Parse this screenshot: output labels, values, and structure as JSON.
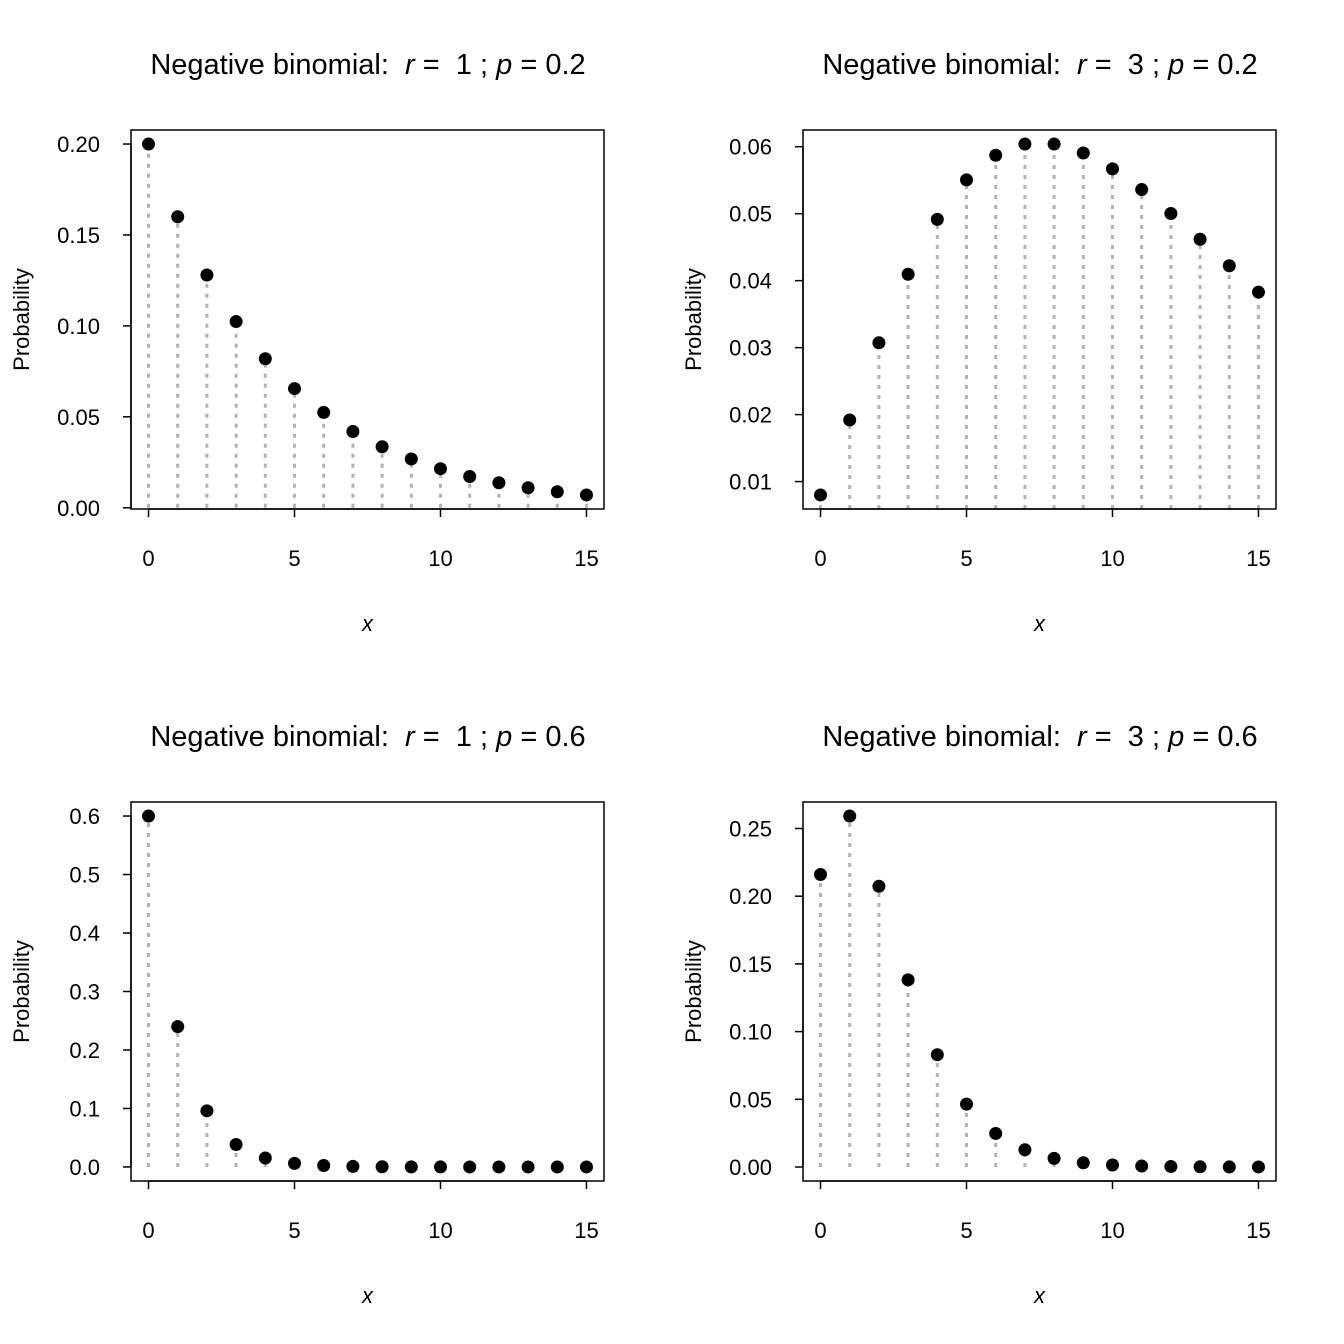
{
  "chart_data": [
    {
      "type": "scatter",
      "title": {
        "prefix": "Negative binomial:",
        "r_symbol": "r",
        "r": "1",
        "p_symbol": "p",
        "p": "0.2"
      },
      "xlabel": "x",
      "ylabel": "Probability",
      "x": [
        0,
        1,
        2,
        3,
        4,
        5,
        6,
        7,
        8,
        9,
        10,
        11,
        12,
        13,
        14,
        15
      ],
      "values": [
        0.2,
        0.16,
        0.128,
        0.1024,
        0.08192,
        0.065536,
        0.052429,
        0.041943,
        0.033554,
        0.026844,
        0.021475,
        0.01718,
        0.013744,
        0.010995,
        0.008796,
        0.007037
      ],
      "xlim": [
        0,
        15
      ],
      "ylim": [
        0.007037,
        0.2
      ],
      "xticks": [
        0,
        5,
        10,
        15
      ],
      "xtick_labels": [
        "0",
        "5",
        "10",
        "15"
      ],
      "yticks": [
        0,
        0.05,
        0.1,
        0.15,
        0.2
      ],
      "ytick_labels": [
        "0.00",
        "0.05",
        "0.10",
        "0.15",
        "0.20"
      ],
      "grid": false
    },
    {
      "type": "scatter",
      "title": {
        "prefix": "Negative binomial:",
        "r_symbol": "r",
        "r": "3",
        "p_symbol": "p",
        "p": "0.2"
      },
      "xlabel": "x",
      "ylabel": "Probability",
      "x": [
        0,
        1,
        2,
        3,
        4,
        5,
        6,
        7,
        8,
        9,
        10,
        11,
        12,
        13,
        14,
        15
      ],
      "values": [
        0.008,
        0.0192,
        0.03072,
        0.04096,
        0.049152,
        0.05505,
        0.05872,
        0.060398,
        0.060398,
        0.059056,
        0.056694,
        0.053601,
        0.050028,
        0.046178,
        0.042221,
        0.03828
      ],
      "xlim": [
        0,
        15
      ],
      "ylim": [
        0.008,
        0.060398
      ],
      "xticks": [
        0,
        5,
        10,
        15
      ],
      "xtick_labels": [
        "0",
        "5",
        "10",
        "15"
      ],
      "yticks": [
        0.01,
        0.02,
        0.03,
        0.04,
        0.05,
        0.06
      ],
      "ytick_labels": [
        "0.01",
        "0.02",
        "0.03",
        "0.04",
        "0.05",
        "0.06"
      ],
      "grid": false
    },
    {
      "type": "scatter",
      "title": {
        "prefix": "Negative binomial:",
        "r_symbol": "r",
        "r": "1",
        "p_symbol": "p",
        "p": "0.6"
      },
      "xlabel": "x",
      "ylabel": "Probability",
      "x": [
        0,
        1,
        2,
        3,
        4,
        5,
        6,
        7,
        8,
        9,
        10,
        11,
        12,
        13,
        14,
        15
      ],
      "values": [
        0.6,
        0.24,
        0.096,
        0.0384,
        0.01536,
        0.006144,
        0.0024576,
        0.00098304,
        0.000393,
        0.000157,
        6.29e-05,
        2.52e-05,
        1e-05,
        4e-06,
        1.6e-06,
        6.4e-07
      ],
      "xlim": [
        0,
        15
      ],
      "ylim": [
        6.4e-07,
        0.6
      ],
      "xticks": [
        0,
        5,
        10,
        15
      ],
      "xtick_labels": [
        "0",
        "5",
        "10",
        "15"
      ],
      "yticks": [
        0,
        0.1,
        0.2,
        0.3,
        0.4,
        0.5,
        0.6
      ],
      "ytick_labels": [
        "0.0",
        "0.1",
        "0.2",
        "0.3",
        "0.4",
        "0.5",
        "0.6"
      ],
      "grid": false
    },
    {
      "type": "scatter",
      "title": {
        "prefix": "Negative binomial:",
        "r_symbol": "r",
        "r": "3",
        "p_symbol": "p",
        "p": "0.6"
      },
      "xlabel": "x",
      "ylabel": "Probability",
      "x": [
        0,
        1,
        2,
        3,
        4,
        5,
        6,
        7,
        8,
        9,
        10,
        11,
        12,
        13,
        14,
        15
      ],
      "values": [
        0.216,
        0.2592,
        0.20736,
        0.13824,
        0.082944,
        0.046449,
        0.024773,
        0.01274,
        0.00637,
        0.003114,
        0.001495,
        0.000707,
        0.00033,
        0.000152,
        6.96e-05,
        3.16e-05
      ],
      "xlim": [
        0,
        15
      ],
      "ylim": [
        3.16e-05,
        0.2592
      ],
      "xticks": [
        0,
        5,
        10,
        15
      ],
      "xtick_labels": [
        "0",
        "5",
        "10",
        "15"
      ],
      "yticks": [
        0,
        0.05,
        0.1,
        0.15,
        0.2,
        0.25
      ],
      "ytick_labels": [
        "0.00",
        "0.05",
        "0.10",
        "0.15",
        "0.20",
        "0.25"
      ],
      "grid": false
    }
  ],
  "colors": {
    "points": "#000000",
    "stems": "#b3b3b3",
    "axes": "#000000"
  }
}
